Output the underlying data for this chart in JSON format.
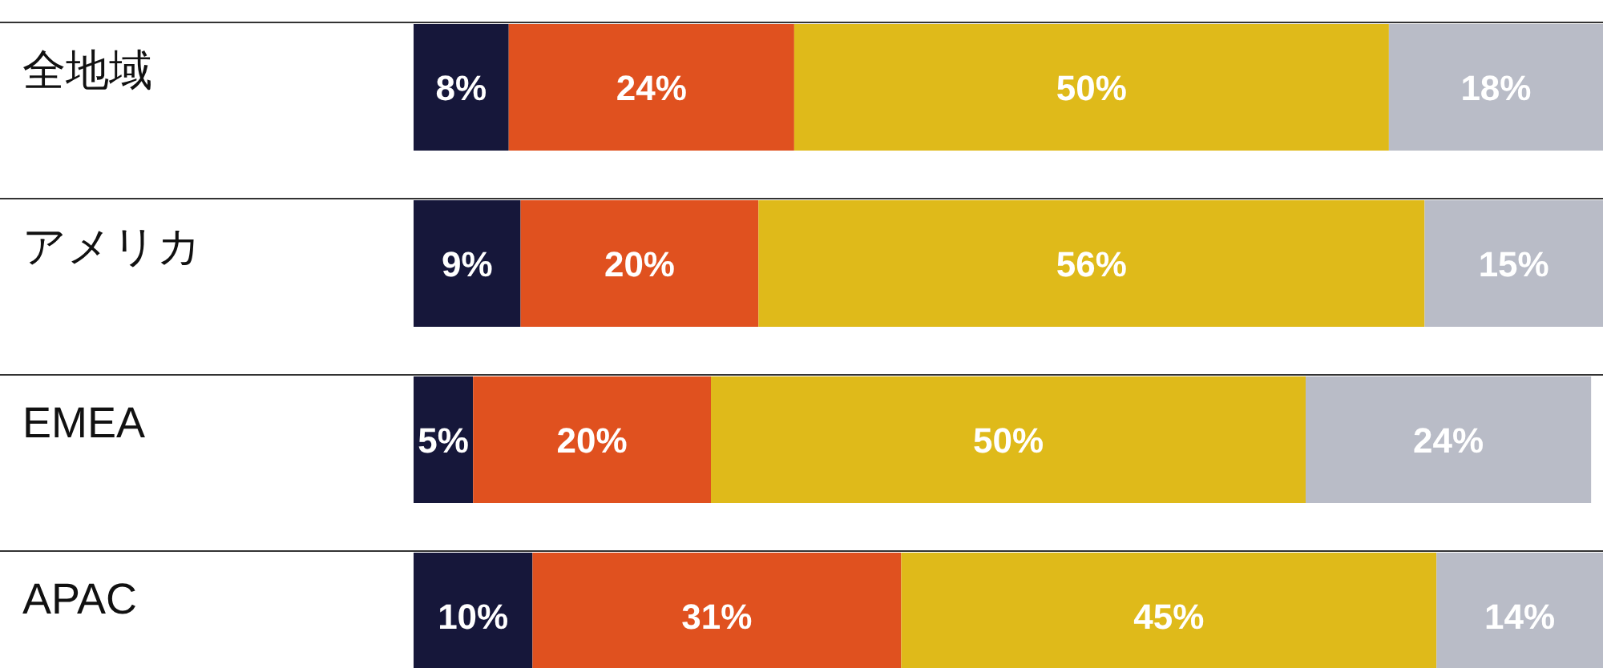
{
  "chart_data": {
    "type": "bar",
    "orientation": "horizontal",
    "stacked": true,
    "categories": [
      "全地域",
      "アメリカ",
      "EMEA",
      "APAC"
    ],
    "series": [
      {
        "color": "#16173a",
        "values": [
          8,
          9,
          5,
          10
        ],
        "value_labels": [
          "8%",
          "9%",
          "5%",
          "10%"
        ]
      },
      {
        "color": "#e0511f",
        "values": [
          24,
          20,
          20,
          31
        ],
        "value_labels": [
          "24%",
          "20%",
          "20%",
          "31%"
        ]
      },
      {
        "color": "#dfba1a",
        "values": [
          50,
          56,
          50,
          45
        ],
        "value_labels": [
          "50%",
          "56%",
          "50%",
          "45%"
        ]
      },
      {
        "color": "#b9bcc7",
        "values": [
          18,
          15,
          24,
          14
        ],
        "value_labels": [
          "18%",
          "15%",
          "24%",
          "14%"
        ]
      }
    ]
  }
}
